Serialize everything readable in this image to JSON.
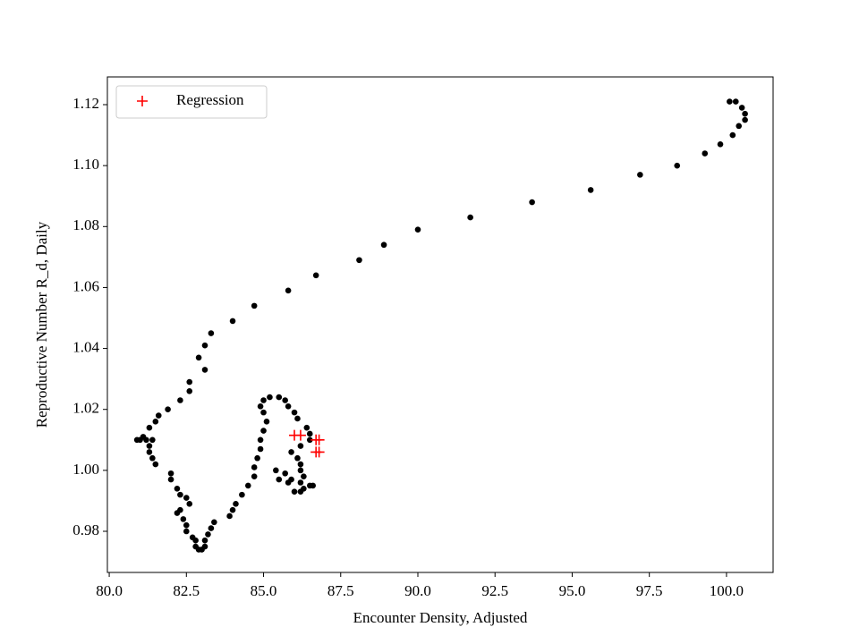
{
  "chart_data": {
    "type": "scatter",
    "xlabel": "Encounter Density, Adjusted",
    "ylabel": "Reproductive Number R_d, Daily",
    "xlim": [
      79.94,
      101.51
    ],
    "ylim": [
      0.9665,
      1.1291
    ],
    "xticks": [
      {
        "value": 80,
        "label": "80.0"
      },
      82.5,
      {
        "value": 85,
        "label": "85.0"
      },
      87.5,
      {
        "value": 90,
        "label": "90.0"
      },
      92.5,
      {
        "value": 95,
        "label": "95.0"
      },
      97.5,
      {
        "value": 100,
        "label": "100.0"
      }
    ],
    "yticks": [
      0.98,
      {
        "value": 1.0,
        "label": "1.00"
      },
      1.02,
      1.04,
      1.06,
      1.08,
      {
        "value": 1.1,
        "label": "1.10"
      },
      1.12
    ],
    "legend": "upper left",
    "series": [
      {
        "color": "#000000",
        "marker": "o",
        "x": [
          100.1,
          100.3,
          100.5,
          100.6,
          100.6,
          100.4,
          100.2,
          99.8,
          99.3,
          98.4,
          97.2,
          95.6,
          93.7,
          91.7,
          90.0,
          88.9,
          88.1,
          86.7,
          85.8,
          84.7,
          84.0,
          83.3,
          83.1,
          82.9,
          83.1,
          82.6,
          82.6,
          82.3,
          81.9,
          81.6,
          81.5,
          81.3,
          81.1,
          80.9,
          81.0,
          81.2,
          81.4,
          81.3,
          81.3,
          81.4,
          81.5,
          82.0,
          82.0,
          82.2,
          82.3,
          82.5,
          82.6,
          82.3,
          82.2,
          82.4,
          82.5,
          82.5,
          82.7,
          82.8,
          82.8,
          83.0,
          82.9,
          83.1,
          83.1,
          83.2,
          83.3,
          83.4,
          83.9,
          84.0,
          84.1,
          84.3,
          84.5,
          84.7,
          84.7,
          84.8,
          84.9,
          84.9,
          85.0,
          85.1,
          85.0,
          84.9,
          85.0,
          85.2,
          85.5,
          85.7,
          85.8,
          86.0,
          86.1,
          86.4,
          86.5,
          86.5,
          86.2,
          85.9,
          86.1,
          86.2,
          86.2,
          86.3,
          86.2,
          86.3,
          86.0,
          85.8,
          85.5,
          85.4,
          85.7,
          85.9,
          86.2,
          86.5,
          86.6
        ],
        "y": [
          1.121,
          1.121,
          1.119,
          1.117,
          1.115,
          1.113,
          1.11,
          1.107,
          1.104,
          1.1,
          1.097,
          1.092,
          1.088,
          1.083,
          1.079,
          1.074,
          1.069,
          1.064,
          1.059,
          1.054,
          1.049,
          1.045,
          1.041,
          1.037,
          1.033,
          1.029,
          1.026,
          1.023,
          1.02,
          1.018,
          1.016,
          1.014,
          1.011,
          1.01,
          1.01,
          1.01,
          1.01,
          1.008,
          1.006,
          1.004,
          1.002,
          0.999,
          0.997,
          0.994,
          0.992,
          0.991,
          0.989,
          0.987,
          0.986,
          0.984,
          0.982,
          0.98,
          0.978,
          0.977,
          0.975,
          0.974,
          0.974,
          0.975,
          0.977,
          0.979,
          0.981,
          0.983,
          0.985,
          0.987,
          0.989,
          0.992,
          0.995,
          0.998,
          1.001,
          1.004,
          1.007,
          1.01,
          1.013,
          1.016,
          1.019,
          1.021,
          1.023,
          1.024,
          1.024,
          1.023,
          1.021,
          1.019,
          1.017,
          1.014,
          1.012,
          1.01,
          1.008,
          1.006,
          1.004,
          1.002,
          1.0,
          0.998,
          0.996,
          0.994,
          0.993,
          0.996,
          0.997,
          1.0,
          0.999,
          0.997,
          0.993,
          0.995,
          0.995
        ]
      },
      {
        "name": "Regression",
        "color": "#ff0000",
        "marker": "+",
        "x": [
          86.0,
          86.2,
          86.7,
          86.8,
          86.7,
          86.8
        ],
        "y": [
          1.0115,
          1.0115,
          1.01,
          1.01,
          1.006,
          1.006
        ]
      }
    ]
  }
}
